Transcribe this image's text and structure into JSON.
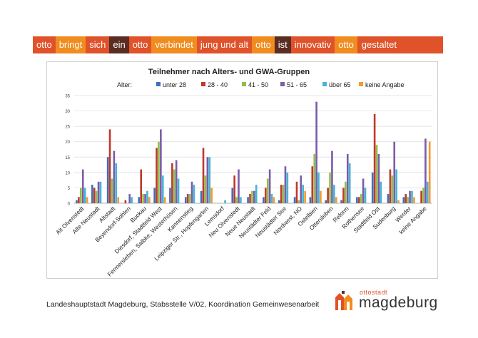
{
  "slogan": {
    "words": [
      {
        "text": "otto",
        "style": "c1"
      },
      {
        "text": "bringt",
        "style": "c3"
      },
      {
        "text": "sich",
        "style": "c1"
      },
      {
        "text": "ein",
        "style": "c2"
      },
      {
        "text": "otto",
        "style": "c1"
      },
      {
        "text": "verbindet",
        "style": "c3"
      },
      {
        "text": "jung und alt",
        "style": "c1"
      },
      {
        "text": "otto",
        "style": "c3"
      },
      {
        "text": "ist",
        "style": "c2"
      },
      {
        "text": "innovativ",
        "style": "c1"
      },
      {
        "text": "otto",
        "style": "c3"
      },
      {
        "text": "gestaltet",
        "style": "c1"
      }
    ],
    "colors": {
      "c1": "#e0522a",
      "c2": "#5a2d22",
      "c3": "#f18c1e"
    }
  },
  "footer": {
    "text": "Landeshauptstadt Magdeburg, Stabsstelle V/02, Koordination Gemeinwesenarbeit",
    "logo_small": "ottostadt",
    "logo_big": "magdeburg"
  },
  "chart_data": {
    "type": "bar",
    "title": "Teilnehmer nach Alters- und GWA-Gruppen",
    "legend_title": "Alter:",
    "legend_position": "top",
    "ylim": [
      0,
      35
    ],
    "yticks": [
      0,
      5,
      10,
      15,
      20,
      25,
      30,
      35
    ],
    "grid": true,
    "categories": [
      "Alt Olvenstedt",
      "Alte Neustadt",
      "Altstadt",
      "Beyendorf-Sohlen",
      "Buckau",
      "Diesdorf, Stadtfeld West",
      "Fermersleben, Salbke, Westerhüsen",
      "Kannenstieg",
      "Leipziger Str., Hopfengarten",
      "Lemsdorf",
      "Neu Olvenstedt",
      "Neue Neustadt",
      "Neustädter Feld",
      "Neustädter See",
      "Nordwest, NO",
      "Ostelbien",
      "Ottersleben",
      "Reform",
      "Rothensee",
      "Stadtfeld Ost",
      "Sudenburg",
      "Werder",
      "keine Angabe"
    ],
    "series": [
      {
        "name": "unter 28",
        "color": "#3f6fbf",
        "values": [
          1,
          6,
          15,
          0,
          2,
          5,
          5,
          2,
          4,
          0,
          5,
          2,
          2,
          1,
          2,
          2,
          1,
          1,
          2,
          10,
          3,
          2,
          0
        ]
      },
      {
        "name": "28 - 40",
        "color": "#c0392b",
        "values": [
          2,
          5,
          24,
          1,
          11,
          18,
          13,
          3,
          18,
          0,
          9,
          3,
          5,
          6,
          7,
          12,
          5,
          5,
          2,
          29,
          11,
          3,
          4
        ]
      },
      {
        "name": "41 - 50",
        "color": "#8fc04a",
        "values": [
          5,
          4,
          8,
          0,
          3,
          20,
          11,
          3,
          9,
          0,
          2,
          4,
          8,
          6,
          1,
          16,
          10,
          7,
          3,
          19,
          9,
          2,
          5
        ]
      },
      {
        "name": "51 - 65",
        "color": "#7b5ca8",
        "values": [
          11,
          7,
          17,
          3,
          3,
          24,
          14,
          7,
          15,
          0,
          11,
          4,
          11,
          12,
          9,
          33,
          17,
          16,
          8,
          16,
          20,
          4,
          21
        ]
      },
      {
        "name": "über 65",
        "color": "#45b4d8",
        "values": [
          5,
          7,
          13,
          2,
          4,
          9,
          8,
          6,
          15,
          1,
          2,
          6,
          3,
          10,
          6,
          10,
          6,
          13,
          5,
          7,
          11,
          4,
          7
        ]
      },
      {
        "name": "keine Angabe",
        "color": "#f59a2e",
        "values": [
          2,
          0,
          2,
          0,
          2,
          2,
          0,
          0,
          5,
          0,
          0,
          0,
          2,
          0,
          4,
          4,
          2,
          0,
          0,
          0,
          1,
          2,
          20
        ]
      }
    ]
  }
}
